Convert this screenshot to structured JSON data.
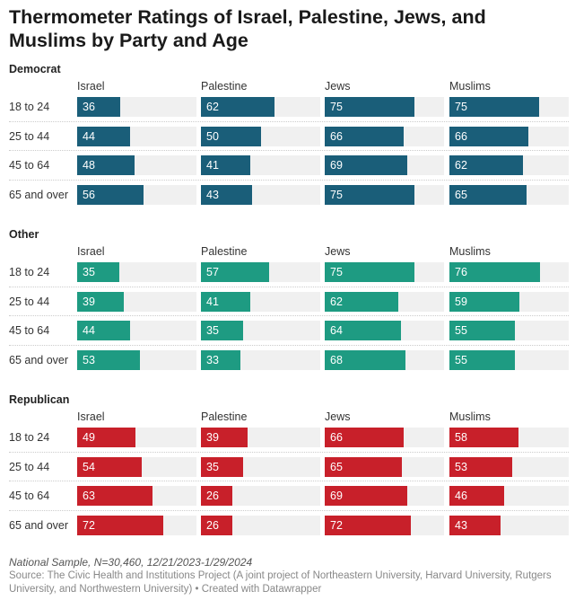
{
  "title": "Thermometer Ratings of Israel, Palestine, Jews, and Muslims by Party and Age",
  "notes": "National Sample, N=30,460, 12/21/2023-1/29/2024",
  "source": "Source: The Civic Health and Institutions Project (A joint project of Northeastern University, Harvard University, Rutgers University, and Northwestern University) • Created with Datawrapper",
  "chart_data": {
    "type": "bar",
    "title": "Thermometer Ratings of Israel, Palestine, Jews, and Muslims by Party and Age",
    "xlim": [
      0,
      100
    ],
    "columns": [
      "Israel",
      "Palestine",
      "Jews",
      "Muslims"
    ],
    "categories": [
      "18 to 24",
      "25 to 44",
      "45 to 64",
      "65 and over"
    ],
    "panels": [
      {
        "name": "Democrat",
        "color": "#1a5e79",
        "values": [
          [
            36,
            62,
            75,
            75
          ],
          [
            44,
            50,
            66,
            66
          ],
          [
            48,
            41,
            69,
            62
          ],
          [
            56,
            43,
            75,
            65
          ]
        ]
      },
      {
        "name": "Other",
        "color": "#1e9b82",
        "values": [
          [
            35,
            57,
            75,
            76
          ],
          [
            39,
            41,
            62,
            59
          ],
          [
            44,
            35,
            64,
            55
          ],
          [
            53,
            33,
            68,
            55
          ]
        ]
      },
      {
        "name": "Republican",
        "color": "#c8202a",
        "values": [
          [
            49,
            39,
            66,
            58
          ],
          [
            54,
            35,
            65,
            53
          ],
          [
            63,
            26,
            69,
            46
          ],
          [
            72,
            26,
            72,
            43
          ]
        ]
      }
    ]
  }
}
